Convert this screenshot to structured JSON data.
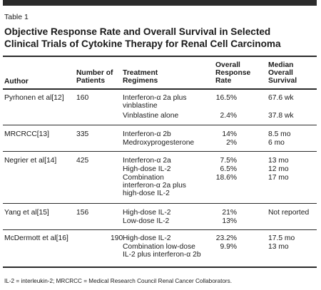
{
  "table": {
    "label": "Table 1",
    "title_lines": [
      "Objective Response Rate and Overall Survival in Selected",
      "Clinical Trials of Cytokine Therapy for Renal Cell Carcinoma"
    ],
    "headers": {
      "author": "Author",
      "patients": [
        "Number of",
        "Patients"
      ],
      "regimens": [
        "Treatment",
        "Regimens"
      ],
      "response": [
        "Overall",
        "Response",
        "Rate"
      ],
      "survival": [
        "Median",
        "Overall",
        "Survival"
      ]
    },
    "rows": [
      {
        "author": "Pyrhonen et al[12]",
        "patients": "160",
        "entries": [
          {
            "regimen": [
              "Interferon-α 2a plus",
              "vinblastine"
            ],
            "rate": "16.5%",
            "survival": "67.6 wk"
          },
          {
            "regimen": [
              "Vinblastine alone"
            ],
            "rate": "2.4%",
            "survival": "37.8 wk"
          }
        ]
      },
      {
        "author": "MRCRCC[13]",
        "patients": "335",
        "entries": [
          {
            "regimen": [
              "Interferon-α 2b"
            ],
            "rate": "14%",
            "survival": "8.5 mo"
          },
          {
            "regimen": [
              "Medroxyprogesterone"
            ],
            "rate": "2%",
            "survival": "6 mo"
          }
        ]
      },
      {
        "author": "Negrier et al[14]",
        "patients": "425",
        "entries": [
          {
            "regimen": [
              "Interferon-α 2a"
            ],
            "rate": "7.5%",
            "survival": "13 mo"
          },
          {
            "regimen": [
              "High-dose IL-2"
            ],
            "rate": "6.5%",
            "survival": "12 mo"
          },
          {
            "regimen": [
              "Combination",
              "interferon-α 2a plus",
              "high-dose IL-2"
            ],
            "rate": "18.6%",
            "survival": "17 mo"
          }
        ]
      },
      {
        "author": "Yang et al[15]",
        "patients": "156",
        "entries": [
          {
            "regimen": [
              "High-dose IL-2"
            ],
            "rate": "21%",
            "survival": "Not reported"
          },
          {
            "regimen": [
              "Low-dose IL-2"
            ],
            "rate": "13%",
            "survival": ""
          }
        ]
      },
      {
        "author": "McDermott et al[16]",
        "patients": "190",
        "entries": [
          {
            "regimen": [
              "High-dose IL-2"
            ],
            "rate": "23.2%",
            "survival": "17.5 mo"
          },
          {
            "regimen": [
              "Combination low-dose",
              "IL-2 plus interferon-α 2b"
            ],
            "rate": "9.9%",
            "survival": "13 mo"
          }
        ]
      }
    ],
    "footnote": "IL-2 = interleukin-2; MRCRCC = Medical Research Council Renal Cancer Collaborators."
  }
}
